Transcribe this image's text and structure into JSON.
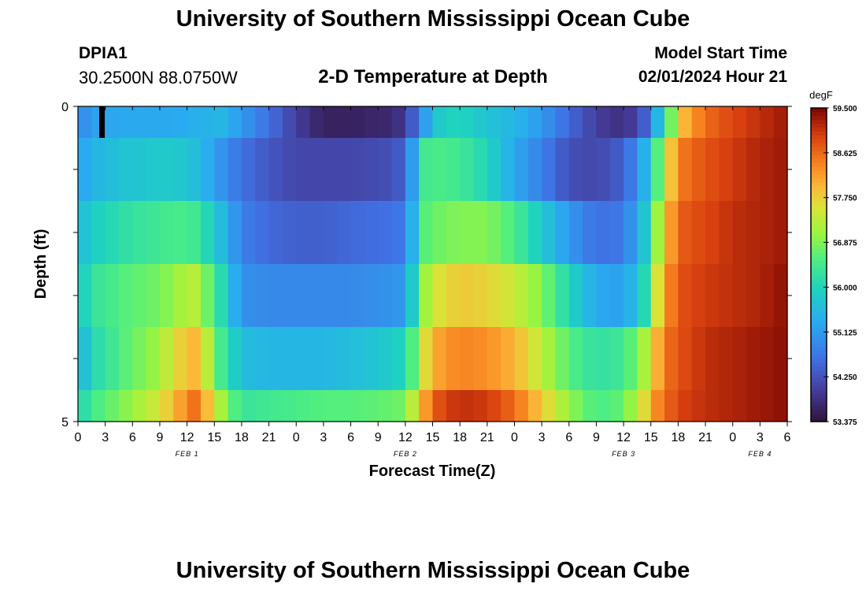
{
  "header": {
    "title": "University of Southern Mississippi Ocean Cube",
    "station_id": "DPIA1",
    "coords": "30.2500N  88.0750W",
    "chart_title": "2-D Temperature at Depth",
    "start_label": "Model Start Time",
    "start_value": "02/01/2024 Hour 21"
  },
  "footer": {
    "title": "University of Southern Mississippi Ocean Cube"
  },
  "chart_data": {
    "type": "heatmap",
    "title": "2-D Temperature at Depth",
    "xlabel": "Forecast Time(Z)",
    "ylabel": "Depth (ft)",
    "x_tick_labels": [
      "0",
      "3",
      "6",
      "9",
      "12",
      "15",
      "18",
      "21",
      "0",
      "3",
      "6",
      "9",
      "12",
      "15",
      "18",
      "21",
      "0",
      "3",
      "6",
      "9",
      "12",
      "15",
      "18",
      "21",
      "0",
      "3",
      "6"
    ],
    "date_labels": [
      {
        "tick_index": 4,
        "label": "FEB 1"
      },
      {
        "tick_index": 12,
        "label": "FEB 2"
      },
      {
        "tick_index": 20,
        "label": "FEB 3"
      },
      {
        "tick_index": 25,
        "label": "FEB 4"
      }
    ],
    "y_tick_labels": [
      {
        "depth": 0,
        "label": "0"
      },
      {
        "depth": 5,
        "label": "5"
      }
    ],
    "ylim": [
      0,
      5
    ],
    "colorbar": {
      "unit": "degF",
      "min": 53.375,
      "max": 59.5,
      "tick_labels": [
        "59.500",
        "58.625",
        "57.750",
        "56.875",
        "56.000",
        "55.125",
        "54.250",
        "53.375"
      ]
    },
    "key_hours": [
      0,
      2,
      5,
      9,
      11,
      13,
      16,
      18,
      21,
      24,
      27,
      30,
      34,
      36,
      38,
      39,
      40,
      42,
      45,
      48,
      51,
      54,
      57,
      60,
      62,
      63,
      64,
      65,
      66,
      67,
      69,
      72,
      75,
      78
    ],
    "rows": [
      {
        "depth_label": "0",
        "values": [
          54.9,
          55.2,
          55.3,
          55.3,
          55.3,
          55.4,
          55.5,
          55.1,
          54.6,
          54.0,
          53.6,
          53.6,
          53.7,
          53.9,
          55.1,
          55.5,
          55.9,
          56.0,
          55.7,
          55.5,
          55.1,
          54.5,
          54.0,
          53.8,
          54.2,
          54.9,
          55.7,
          56.5,
          57.7,
          58.1,
          58.6,
          58.9,
          59.1,
          59.3
        ]
      },
      {
        "depth_label": "1",
        "values": [
          55.2,
          55.5,
          55.7,
          55.8,
          55.8,
          55.6,
          55.0,
          54.6,
          54.3,
          54.1,
          54.1,
          54.1,
          54.2,
          54.4,
          56.4,
          56.5,
          56.5,
          56.4,
          56.0,
          55.3,
          54.8,
          54.2,
          54.1,
          54.4,
          55.2,
          56.0,
          56.8,
          57.7,
          58.4,
          58.6,
          58.8,
          59.0,
          59.2,
          59.3
        ]
      },
      {
        "depth_label": "2",
        "values": [
          55.6,
          55.9,
          56.2,
          56.4,
          56.5,
          56.4,
          55.5,
          54.8,
          54.5,
          54.4,
          54.4,
          54.5,
          54.6,
          54.7,
          56.6,
          56.7,
          56.8,
          56.9,
          56.9,
          56.5,
          55.8,
          55.1,
          54.6,
          54.7,
          55.5,
          56.4,
          57.3,
          58.1,
          58.6,
          58.8,
          58.9,
          59.1,
          59.2,
          59.3
        ]
      },
      {
        "depth_label": "3",
        "values": [
          55.8,
          56.3,
          56.6,
          56.8,
          57.1,
          57.3,
          56.0,
          55.0,
          54.9,
          54.9,
          54.9,
          54.9,
          55.0,
          55.1,
          57.0,
          57.4,
          57.6,
          57.8,
          57.7,
          57.4,
          56.9,
          56.0,
          55.3,
          55.2,
          55.8,
          56.8,
          57.8,
          58.4,
          58.7,
          58.9,
          59.0,
          59.1,
          59.2,
          59.4
        ]
      },
      {
        "depth_label": "4",
        "values": [
          55.4,
          56.1,
          56.6,
          57.1,
          57.7,
          58.0,
          56.3,
          55.6,
          55.5,
          55.5,
          55.5,
          55.6,
          55.8,
          56.0,
          57.5,
          58.0,
          58.2,
          58.4,
          58.3,
          58.0,
          57.3,
          56.6,
          56.2,
          56.4,
          57.0,
          57.6,
          58.2,
          58.6,
          58.8,
          58.9,
          59.1,
          59.2,
          59.3,
          59.4
        ]
      },
      {
        "depth_label": "5",
        "values": [
          56.0,
          56.5,
          56.9,
          57.5,
          58.1,
          58.6,
          57.0,
          56.3,
          56.4,
          56.5,
          56.6,
          56.6,
          56.7,
          56.8,
          58.1,
          58.6,
          58.9,
          59.1,
          59.0,
          58.6,
          57.8,
          57.0,
          56.5,
          56.7,
          57.5,
          58.0,
          58.5,
          58.7,
          58.9,
          59.0,
          59.1,
          59.2,
          59.3,
          59.4
        ]
      }
    ],
    "mask": {
      "hour": 2.6,
      "depth_label": "0",
      "color": "#000000"
    }
  }
}
